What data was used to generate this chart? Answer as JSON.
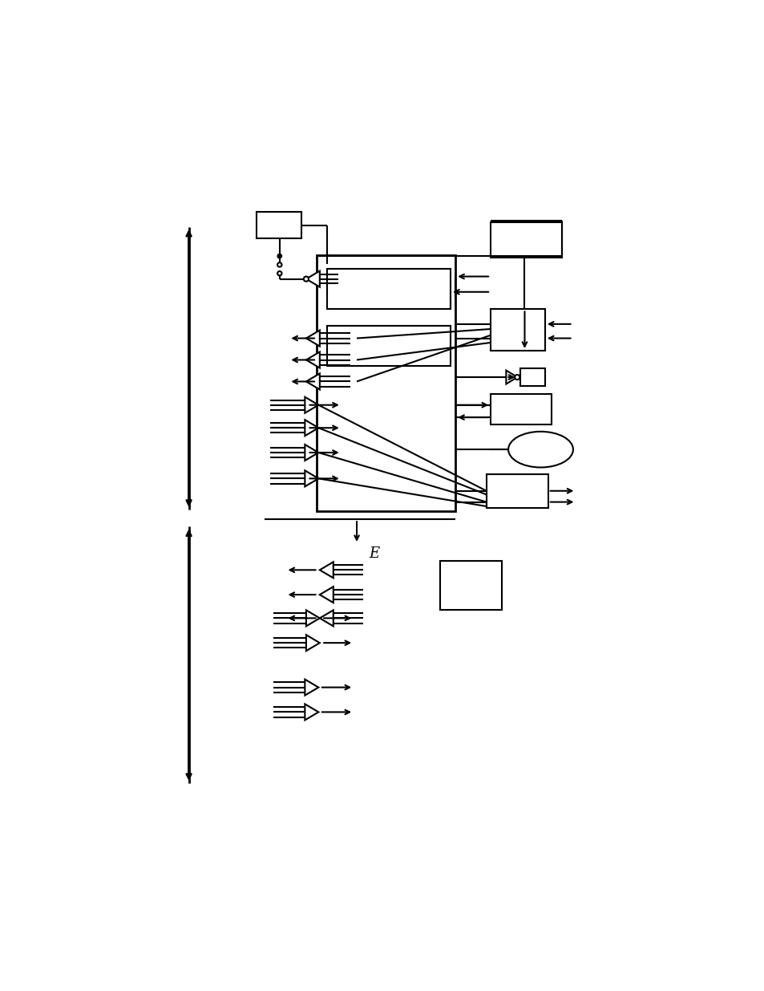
{
  "background_color": "#ffffff",
  "line_color": "#000000",
  "lw": 1.5,
  "lw2": 2.0,
  "fig_w": 9.54,
  "fig_h": 12.35,
  "dpi": 100
}
